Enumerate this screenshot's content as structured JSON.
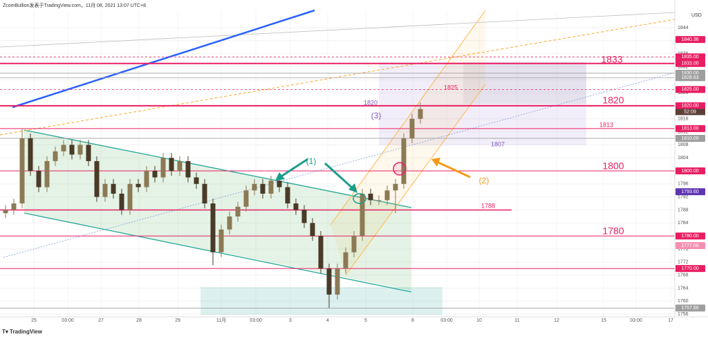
{
  "chart_data": {
    "type": "candlestick",
    "header": "ZcomBullion发表于TradingView.com，11月 08, 2021 13:07 UTC+8",
    "footer": "TradingView",
    "currency": "USD",
    "x_labels": [
      "25",
      "03:00",
      "27",
      "28",
      "29",
      "11月",
      "03:00",
      "3",
      "4",
      "5",
      "8",
      "03:00",
      "10",
      "11",
      "12",
      "15",
      "03:00",
      "17"
    ],
    "ylim": [
      1755.8,
      1849.3
    ],
    "yticks": [
      1756,
      1760,
      1764,
      1768,
      1772,
      1776,
      1780,
      1784,
      1788,
      1792,
      1796,
      1800,
      1804,
      1808,
      1812,
      1816,
      1820,
      1824,
      1828,
      1832,
      1836,
      1840,
      1844
    ],
    "grid": true,
    "up_color": "#8c7a55",
    "down_color": "#4a3a28",
    "candles": {
      "open": [
        1787,
        1788,
        1790,
        1810,
        1800,
        1795,
        1803,
        1806,
        1808,
        1805,
        1808,
        1803,
        1792,
        1796,
        1793,
        1788,
        1796,
        1795,
        1800,
        1798,
        1804,
        1800,
        1803,
        1798,
        1796,
        1790,
        1775,
        1782,
        1786,
        1789,
        1794,
        1796,
        1793,
        1797,
        1795,
        1790,
        1788,
        1784,
        1780,
        1770,
        1762,
        1770,
        1775,
        1780,
        1793,
        1791,
        1791,
        1794,
        1796,
        1810,
        1816
      ],
      "high": [
        1789.5,
        1791.5,
        1813,
        1811.5,
        1801.5,
        1804.5,
        1807.5,
        1809.5,
        1809.5,
        1809.5,
        1809.5,
        1804.5,
        1797.5,
        1797.5,
        1794.5,
        1797.5,
        1797.5,
        1801.5,
        1801.5,
        1805.5,
        1805.5,
        1804.5,
        1804.5,
        1799.5,
        1797.5,
        1791.5,
        1783.5,
        1787.5,
        1790.5,
        1795.5,
        1797.5,
        1797.5,
        1798.5,
        1798.5,
        1796.5,
        1791.5,
        1789.5,
        1785.5,
        1781.5,
        1771.5,
        1771.5,
        1776.5,
        1781.5,
        1794.5,
        1794.5,
        1792.5,
        1795.5,
        1797.5,
        1811.5,
        1817.5,
        1821
      ],
      "low": [
        1785.5,
        1786.5,
        1788.5,
        1798.5,
        1793.5,
        1793.5,
        1801.5,
        1804.5,
        1803.5,
        1803.5,
        1801.5,
        1790.5,
        1790.5,
        1791.5,
        1786.5,
        1786.5,
        1793.5,
        1793.5,
        1796.5,
        1796.5,
        1798.5,
        1798.5,
        1796.5,
        1794.5,
        1788.5,
        1771,
        1773.5,
        1780.5,
        1784.5,
        1787.5,
        1792.5,
        1791.5,
        1791.5,
        1793.5,
        1788.5,
        1786.5,
        1782.5,
        1778.5,
        1768.5,
        1757.9,
        1760.5,
        1768.5,
        1773.5,
        1778.5,
        1789.5,
        1789.5,
        1789.5,
        1787,
        1794.5,
        1808.5,
        1814.5
      ],
      "close": [
        1788,
        1790,
        1810,
        1800,
        1795,
        1803,
        1806,
        1808,
        1805,
        1808,
        1803,
        1792,
        1796,
        1793,
        1788,
        1796,
        1795,
        1800,
        1798,
        1804,
        1800,
        1803,
        1798,
        1796,
        1790,
        1775,
        1782,
        1786,
        1789,
        1794,
        1796,
        1793,
        1797,
        1795,
        1790,
        1788,
        1784,
        1780,
        1770,
        1762,
        1770,
        1775,
        1780,
        1793,
        1791,
        1791,
        1794,
        1796,
        1810,
        1816,
        1819
      ]
    },
    "price_levels": [
      {
        "value": 1840.36,
        "label": "1840.36",
        "color": "#e91e63",
        "line": "none"
      },
      {
        "value": 1835,
        "label": "1835.00",
        "color": "#e91e63",
        "line": "dashed"
      },
      {
        "value": 1833,
        "label": "1833.00",
        "color": "#e91e63",
        "line": "thick"
      },
      {
        "value": 1830,
        "label": "1830.00",
        "color": "#9e9e9e",
        "line": "gray"
      },
      {
        "value": 1828.63,
        "label": "1828.63",
        "color": "#9e9e9e",
        "line": "gray"
      },
      {
        "value": 1825,
        "label": "1825.00",
        "color": "#e91e63",
        "line": "dashed"
      },
      {
        "value": 1820,
        "label": "1820.00",
        "color": "#e91e63",
        "line": "thick"
      },
      {
        "value": 1813,
        "label": "1813.00",
        "color": "#e91e63",
        "line": "thin"
      },
      {
        "value": 1810,
        "label": "1810.00",
        "color": "#9e9e9e",
        "line": "gray"
      },
      {
        "value": 1800,
        "label": "1800.00",
        "color": "#e91e63",
        "line": "thin"
      },
      {
        "value": 1793.6,
        "label": "1793.60",
        "color": "#5e35b1",
        "line": "none"
      },
      {
        "value": 1788,
        "label": "",
        "color": "#e91e63",
        "line": "short"
      },
      {
        "value": 1780,
        "label": "1780.00",
        "color": "#e91e63",
        "line": "thin"
      },
      {
        "value": 1777.06,
        "label": "1777.06",
        "color": "#f48fb1",
        "line": "none"
      },
      {
        "value": 1770,
        "label": "1770.00",
        "color": "#e91e63",
        "line": "thin"
      },
      {
        "value": 1757.86,
        "label": "1757.86",
        "color": "#9e9e9e",
        "line": "gray"
      }
    ],
    "countdown": {
      "text": "52:09",
      "color": "#5d4037"
    },
    "annotations": [
      {
        "text": "1833",
        "color": "#e91e63"
      },
      {
        "text": "1820",
        "color": "#e91e63"
      },
      {
        "text": "1800",
        "color": "#e91e63"
      },
      {
        "text": "1780",
        "color": "#e91e63"
      },
      {
        "text": "1825",
        "color": "#e91e63"
      },
      {
        "text": "1813",
        "color": "#e91e63"
      },
      {
        "text": "1788",
        "color": "#e91e63"
      },
      {
        "text": "1807",
        "color": "#7e57c2"
      },
      {
        "text": "1820",
        "color": "#7e57c2"
      },
      {
        "text": "(3)",
        "color": "#7e57c2"
      },
      {
        "text": "(1)",
        "color": "#1a9c8a"
      },
      {
        "text": "(2)",
        "color": "#f59b17"
      }
    ]
  }
}
